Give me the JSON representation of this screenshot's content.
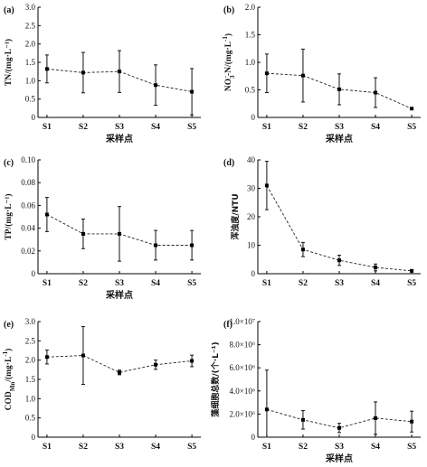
{
  "chart_data": [
    {
      "type": "line",
      "panel_label": "(a)",
      "ylabel": "TN/(mg·L⁻¹)",
      "xlabel": "采样点",
      "categories": [
        "S1",
        "S2",
        "S3",
        "S4",
        "S5"
      ],
      "ylim": [
        0,
        3.0
      ],
      "yticks": [
        "0",
        "0.5",
        "1.0",
        "1.5",
        "2.0",
        "2.5",
        "3.0"
      ],
      "values": [
        1.32,
        1.22,
        1.25,
        0.88,
        0.7
      ],
      "errors": [
        0.38,
        0.55,
        0.57,
        0.55,
        0.63
      ]
    },
    {
      "type": "line",
      "panel_label": "(b)",
      "ylabel": "NO₃⁻-N/(mg·L⁻¹)",
      "xlabel": "采样点",
      "categories": [
        "S1",
        "S2",
        "S3",
        "S4",
        "S5"
      ],
      "ylim": [
        0,
        2.0
      ],
      "yticks": [
        "0",
        "0.5",
        "1.0",
        "1.5",
        "2.0"
      ],
      "values": [
        0.8,
        0.76,
        0.51,
        0.45,
        0.16
      ],
      "errors": [
        0.35,
        0.48,
        0.28,
        0.27,
        0.02
      ]
    },
    {
      "type": "line",
      "panel_label": "(c)",
      "ylabel": "TP/(mg·L⁻¹)",
      "xlabel": "采样点",
      "categories": [
        "S1",
        "S2",
        "S3",
        "S4",
        "S5"
      ],
      "ylim": [
        0,
        0.1
      ],
      "yticks": [
        "0",
        "0.02",
        "0.04",
        "0.06",
        "0.08",
        "0.10"
      ],
      "values": [
        0.052,
        0.035,
        0.035,
        0.025,
        0.025
      ],
      "errors": [
        0.015,
        0.013,
        0.024,
        0.013,
        0.013
      ]
    },
    {
      "type": "line",
      "panel_label": "(d)",
      "ylabel": "浑浊度/NTU",
      "xlabel": "",
      "categories": [
        "S1",
        "S2",
        "S3",
        "S4",
        "S5"
      ],
      "ylim": [
        0,
        40
      ],
      "yticks": [
        "0",
        "10",
        "20",
        "30",
        "40"
      ],
      "values": [
        31,
        8.5,
        4.7,
        2.2,
        1.0
      ],
      "errors": [
        8.5,
        2.5,
        1.8,
        1.2,
        0.4
      ]
    },
    {
      "type": "line",
      "panel_label": "(e)",
      "ylabel": "COD_Mn/(mg·L⁻¹)",
      "xlabel": "",
      "categories": [
        "S1",
        "S2",
        "S3",
        "S4",
        "S5"
      ],
      "ylim": [
        0,
        3.0
      ],
      "yticks": [
        "0",
        "0.5",
        "1.0",
        "1.5",
        "2.0",
        "2.5",
        "3.0"
      ],
      "values": [
        2.08,
        2.12,
        1.68,
        1.88,
        1.98
      ],
      "errors": [
        0.18,
        0.75,
        0.06,
        0.12,
        0.15
      ]
    },
    {
      "type": "line",
      "panel_label": "(f)",
      "ylabel": "藻细胞总数/(个·L⁻¹)",
      "xlabel": "采样点",
      "categories": [
        "S1",
        "S2",
        "S3",
        "S4",
        "S5"
      ],
      "ylim": [
        0,
        10000000
      ],
      "yticks": [
        "0",
        "2.0×10⁶",
        "4.0×10⁶",
        "6.0×10⁶",
        "8.0×10⁶",
        "1.0×10⁷"
      ],
      "values": [
        2400000,
        1500000,
        800000,
        1650000,
        1350000
      ],
      "errors": [
        3400000,
        800000,
        400000,
        1400000,
        900000
      ]
    }
  ]
}
